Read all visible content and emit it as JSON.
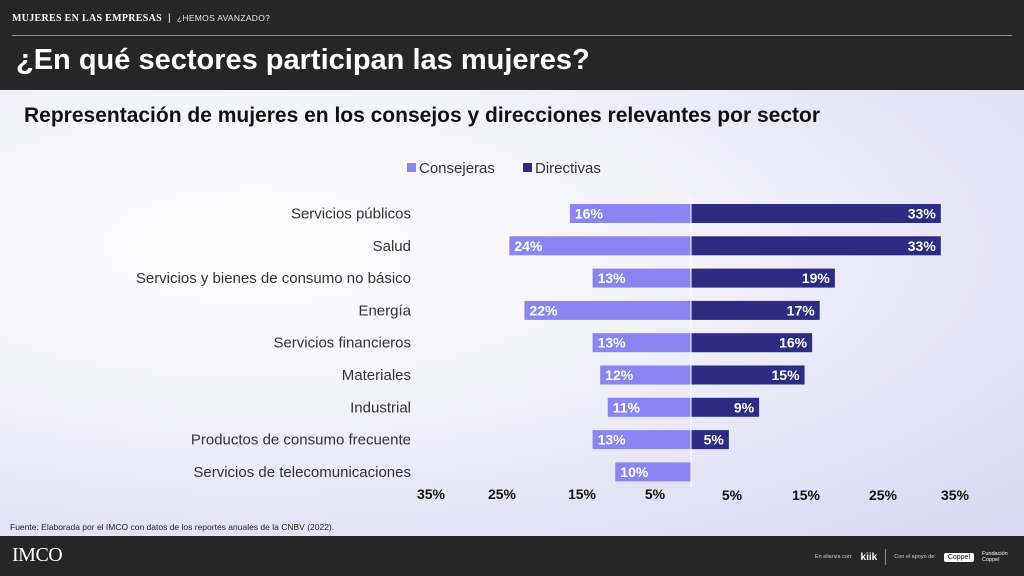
{
  "header": {
    "kicker": "MUJERES EN LAS EMPRESAS",
    "kicker_sub": "¿HEMOS AVANZADO?",
    "title": "¿En qué sectores participan las mujeres?"
  },
  "footer": {
    "source": "Fuente: Elaborada por el IMCO  con datos de los reportes anuales de la CNBV (2022).",
    "logo": "IMCO",
    "alliance_text": "En alianza con:",
    "alliance_brand": "kiik",
    "support_text": "Con el apoyo de:",
    "support_brand": "Coppel",
    "support_brand2": "Fundación Coppel"
  },
  "chart_data": {
    "type": "bar",
    "orientation": "horizontal-diverging",
    "title": "Representación de mujeres en los consejos y direcciones relevantes por sector",
    "legend_position": "top",
    "categories": [
      "Servicios públicos",
      "Salud",
      "Servicios y bienes de consumo no básico",
      "Energía",
      "Servicios financieros",
      "Materiales",
      "Industrial",
      "Productos de consumo frecuente",
      "Servicios de telecomunicaciones"
    ],
    "series": [
      {
        "name": "Consejeras",
        "side": "left",
        "color": "#8b85f2",
        "values": [
          16,
          24,
          13,
          22,
          13,
          12,
          11,
          13,
          10
        ]
      },
      {
        "name": "Directivas",
        "side": "right",
        "color": "#2c2c82",
        "values": [
          33,
          33,
          19,
          17,
          16,
          15,
          9,
          5,
          null
        ]
      }
    ],
    "value_suffix": "%",
    "xlim": [
      0,
      35
    ],
    "left_ticks": [
      "35%",
      "25%",
      "15%",
      "5%"
    ],
    "right_ticks": [
      "5%",
      "15%",
      "25%",
      "35%"
    ],
    "grid": false
  }
}
